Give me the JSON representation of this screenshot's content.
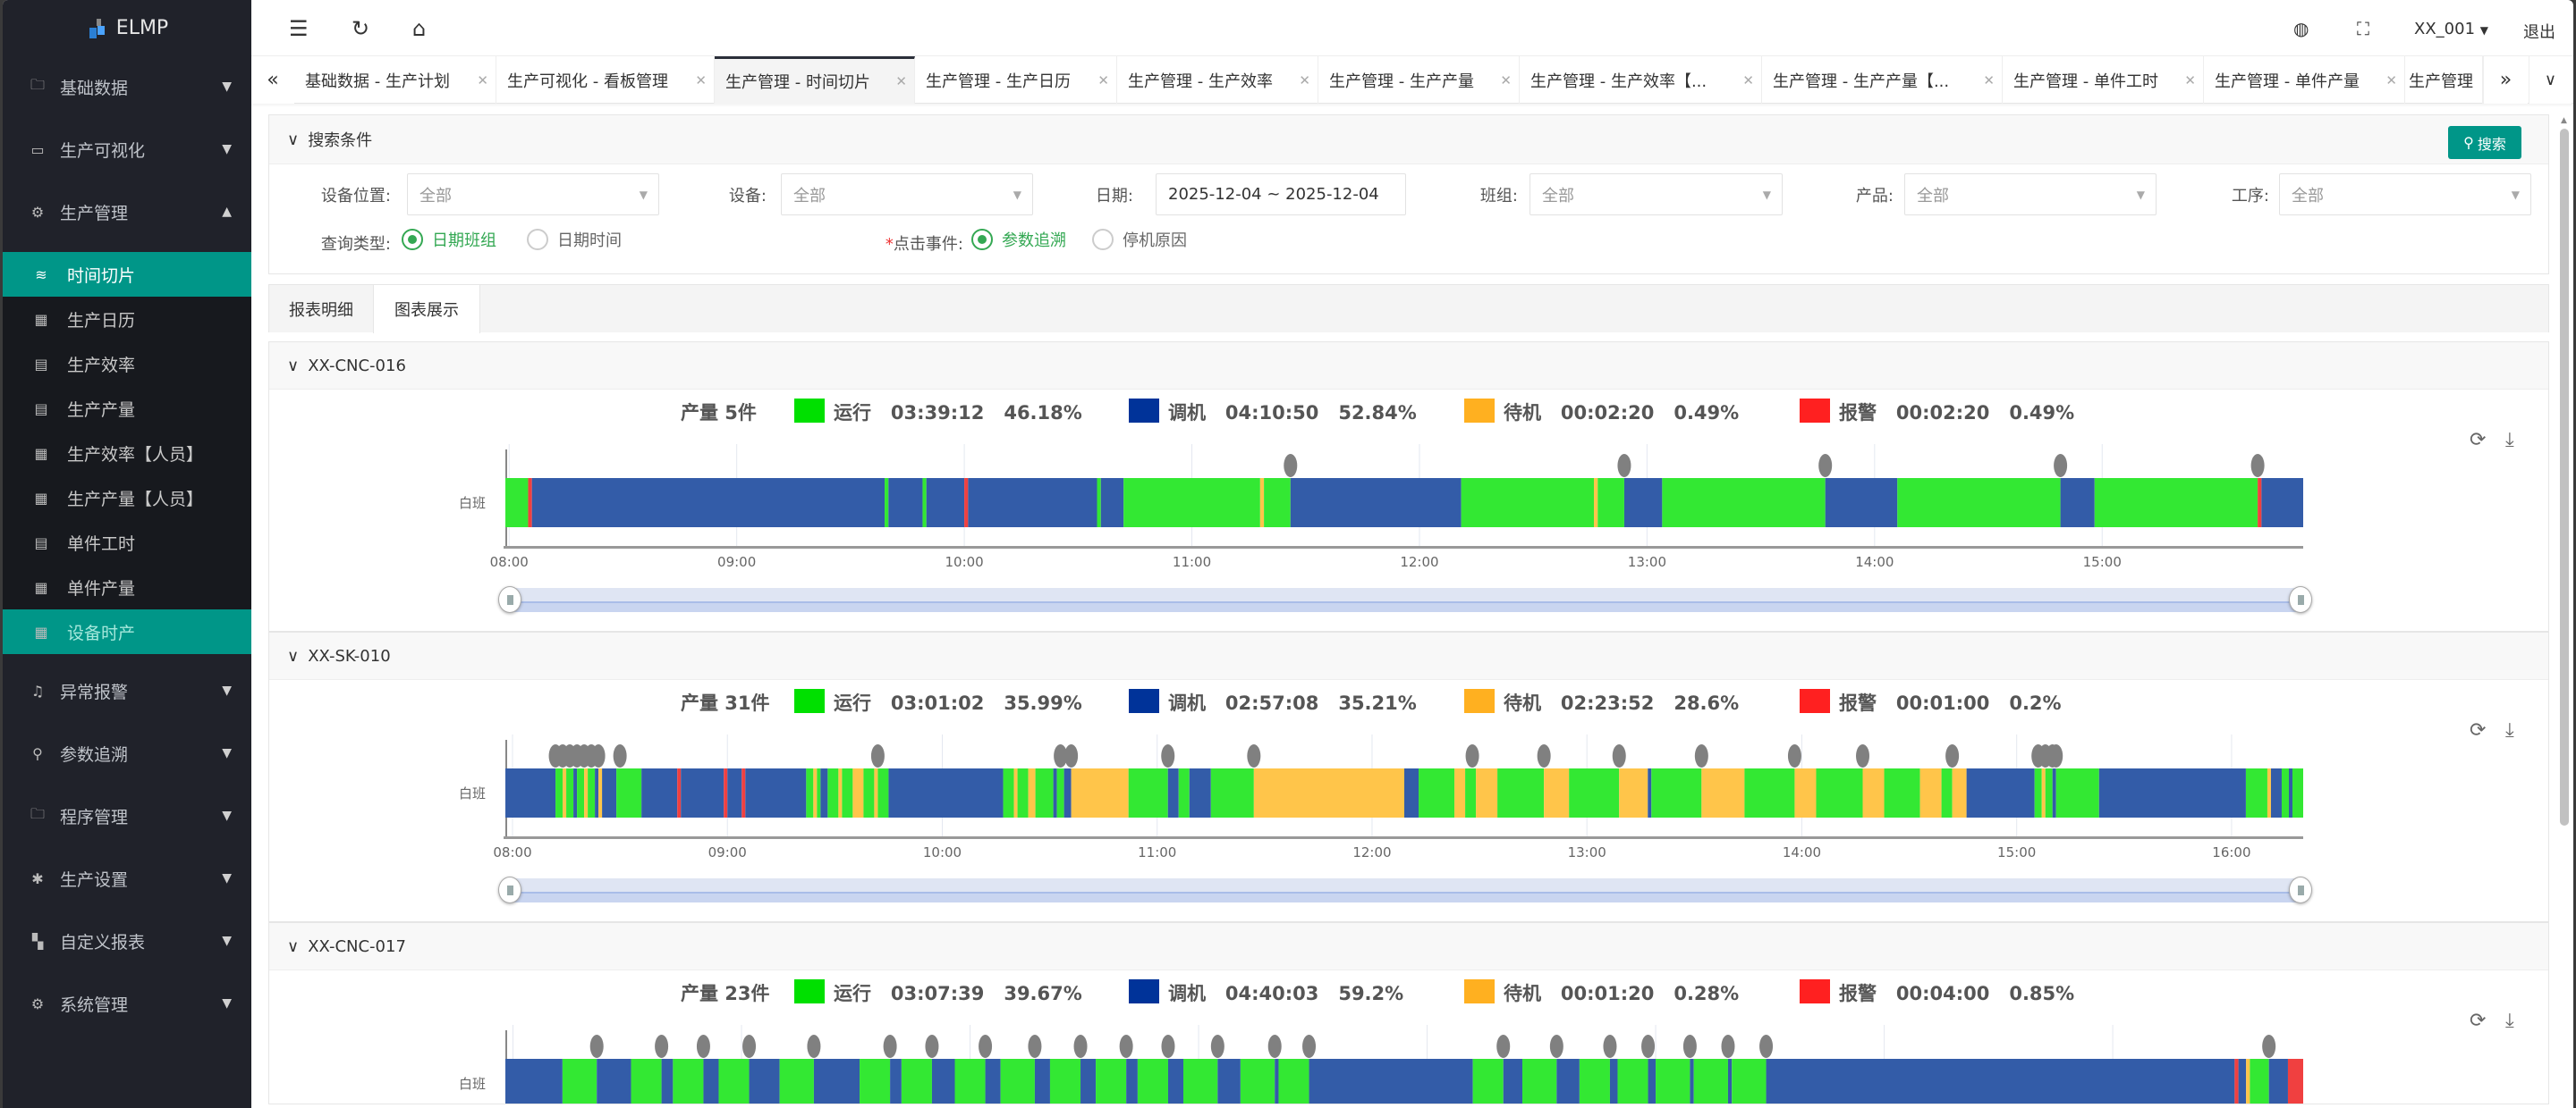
{
  "app": {
    "logo": "ELMP"
  },
  "sidebar": {
    "top": [
      {
        "label": "基础数据",
        "icon": "folder-icon"
      },
      {
        "label": "生产可视化",
        "icon": "monitor-icon"
      },
      {
        "label": "生产管理",
        "icon": "gear-icon"
      }
    ],
    "sub": [
      {
        "label": "时间切片",
        "icon": "layers-icon"
      },
      {
        "label": "生产日历",
        "icon": "table-icon"
      },
      {
        "label": "生产效率",
        "icon": "clipboard-icon"
      },
      {
        "label": "生产产量",
        "icon": "clipboard-icon"
      },
      {
        "label": "生产效率【人员】",
        "icon": "table-icon"
      },
      {
        "label": "生产产量【人员】",
        "icon": "table-icon"
      },
      {
        "label": "单件工时",
        "icon": "clipboard-icon"
      },
      {
        "label": "单件产量",
        "icon": "table-icon"
      },
      {
        "label": "设备时产",
        "icon": "table-icon"
      }
    ],
    "bottom": [
      {
        "label": "异常报警",
        "icon": "bell-icon"
      },
      {
        "label": "参数追溯",
        "icon": "search-icon"
      },
      {
        "label": "程序管理",
        "icon": "folder-icon"
      },
      {
        "label": "生产设置",
        "icon": "cog-icon"
      },
      {
        "label": "自定义报表",
        "icon": "report-icon"
      },
      {
        "label": "系统管理",
        "icon": "settings-icon"
      }
    ]
  },
  "header": {
    "user": "XX_001",
    "logout": "退出"
  },
  "tabs": [
    "基础数据 - 生产计划",
    "生产可视化 - 看板管理",
    "生产管理 - 时间切片",
    "生产管理 - 生产日历",
    "生产管理 - 生产效率",
    "生产管理 - 生产产量",
    "生产管理 - 生产效率【...",
    "生产管理 - 生产产量【...",
    "生产管理 - 单件工时",
    "生产管理 - 单件产量",
    "生产管理"
  ],
  "search": {
    "title": "搜索条件",
    "button": "搜索",
    "fields": [
      {
        "label": "设备位置:",
        "value": "全部"
      },
      {
        "label": "设备:",
        "value": "全部"
      },
      {
        "label": "日期:",
        "value": "2025-12-04 ~ 2025-12-04"
      },
      {
        "label": "班组:",
        "value": "全部"
      },
      {
        "label": "产品:",
        "value": "全部"
      },
      {
        "label": "工序:",
        "value": "全部"
      }
    ],
    "query_type": {
      "label": "查询类型:",
      "options": [
        "日期班组",
        "日期时间"
      ],
      "selected": "日期班组"
    },
    "click_event": {
      "label": "点击事件:",
      "required_mark": "*",
      "options": [
        "参数追溯",
        "停机原因"
      ],
      "selected": "参数追溯"
    }
  },
  "report_tabs": [
    "报表明细",
    "图表展示"
  ],
  "colors": {
    "run": "#33e833",
    "adjust": "#335ca8",
    "idle": "#ffc54a",
    "alarm": "#f04040",
    "legend_run": "#00e000",
    "legend_adjust": "#003399",
    "legend_idle": "#ffb020",
    "legend_alarm": "#ff2020",
    "marker": "#808080",
    "accent": "#009688"
  },
  "chart_data": [
    {
      "type": "timeline",
      "device": "XX-CNC-016",
      "output": "产量 5件",
      "shift": "白班",
      "legend": [
        {
          "state": "run",
          "text": "运行   03:39:12   46.18%"
        },
        {
          "state": "adjust",
          "text": "调机   04:10:50   52.84%"
        },
        {
          "state": "idle",
          "text": "待机   00:02:20   0.49%"
        },
        {
          "state": "alarm",
          "text": "报警   00:02:20   0.49%"
        }
      ],
      "xlim": [
        "07:59",
        "15:53"
      ],
      "ticks": [
        "08:00",
        "09:00",
        "10:00",
        "11:00",
        "12:00",
        "13:00",
        "14:00",
        "15:00"
      ],
      "segments": [
        [
          "07:59",
          "08:05",
          "run"
        ],
        [
          "08:05",
          "08:06",
          "alarm"
        ],
        [
          "08:06",
          "09:39",
          "adjust"
        ],
        [
          "09:39",
          "09:40",
          "run"
        ],
        [
          "09:40",
          "09:49",
          "adjust"
        ],
        [
          "09:49",
          "09:50",
          "run"
        ],
        [
          "09:50",
          "10:00",
          "adjust"
        ],
        [
          "10:00",
          "10:01",
          "alarm"
        ],
        [
          "10:01",
          "10:35",
          "adjust"
        ],
        [
          "10:35",
          "10:36",
          "run"
        ],
        [
          "10:36",
          "10:42",
          "adjust"
        ],
        [
          "10:42",
          "11:18",
          "run"
        ],
        [
          "11:18",
          "11:19",
          "idle"
        ],
        [
          "11:19",
          "11:26",
          "run"
        ],
        [
          "11:26",
          "12:11",
          "adjust"
        ],
        [
          "12:11",
          "12:46",
          "run"
        ],
        [
          "12:46",
          "12:47",
          "idle"
        ],
        [
          "12:47",
          "12:54",
          "run"
        ],
        [
          "12:54",
          "13:04",
          "adjust"
        ],
        [
          "13:04",
          "13:47",
          "run"
        ],
        [
          "13:47",
          "14:06",
          "adjust"
        ],
        [
          "14:06",
          "14:49",
          "run"
        ],
        [
          "14:49",
          "14:58",
          "adjust"
        ],
        [
          "14:58",
          "15:41",
          "run"
        ],
        [
          "15:41",
          "15:42",
          "alarm"
        ],
        [
          "15:42",
          "15:53",
          "adjust"
        ]
      ],
      "markers": [
        "11:26",
        "12:54",
        "13:47",
        "14:49",
        "15:41"
      ]
    },
    {
      "type": "timeline",
      "device": "XX-SK-010",
      "output": "产量 31件",
      "shift": "白班",
      "legend": [
        {
          "state": "run",
          "text": "运行   03:01:02   35.99%"
        },
        {
          "state": "adjust",
          "text": "调机   02:57:08   35.21%"
        },
        {
          "state": "idle",
          "text": "待机   02:23:52   28.6%"
        },
        {
          "state": "alarm",
          "text": "报警   00:01:00   0.2%"
        }
      ],
      "xlim": [
        "07:58",
        "16:20"
      ],
      "ticks": [
        "08:00",
        "09:00",
        "10:00",
        "11:00",
        "12:00",
        "13:00",
        "14:00",
        "15:00",
        "16:00"
      ],
      "segments": [
        [
          "07:58",
          "08:12",
          "adjust"
        ],
        [
          "08:12",
          "08:14",
          "run"
        ],
        [
          "08:14",
          "08:15",
          "idle"
        ],
        [
          "08:15",
          "08:17",
          "run"
        ],
        [
          "08:17",
          "08:18",
          "adjust"
        ],
        [
          "08:18",
          "08:20",
          "run"
        ],
        [
          "08:20",
          "08:21",
          "idle"
        ],
        [
          "08:21",
          "08:23",
          "run"
        ],
        [
          "08:23",
          "08:24",
          "adjust"
        ],
        [
          "08:24",
          "08:25",
          "idle"
        ],
        [
          "08:25",
          "08:29",
          "adjust"
        ],
        [
          "08:29",
          "08:36",
          "run"
        ],
        [
          "08:36",
          "08:46",
          "adjust"
        ],
        [
          "08:46",
          "08:47",
          "alarm"
        ],
        [
          "08:47",
          "08:59",
          "adjust"
        ],
        [
          "08:59",
          "09:00",
          "alarm"
        ],
        [
          "09:00",
          "09:04",
          "adjust"
        ],
        [
          "09:04",
          "09:05",
          "alarm"
        ],
        [
          "09:05",
          "09:22",
          "adjust"
        ],
        [
          "09:22",
          "09:24",
          "run"
        ],
        [
          "09:24",
          "09:25",
          "idle"
        ],
        [
          "09:25",
          "09:26",
          "run"
        ],
        [
          "09:26",
          "09:28",
          "adjust"
        ],
        [
          "09:28",
          "09:31",
          "run"
        ],
        [
          "09:31",
          "09:32",
          "idle"
        ],
        [
          "09:32",
          "09:35",
          "run"
        ],
        [
          "09:35",
          "09:38",
          "idle"
        ],
        [
          "09:38",
          "09:41",
          "run"
        ],
        [
          "09:41",
          "09:42",
          "idle"
        ],
        [
          "09:42",
          "09:45",
          "run"
        ],
        [
          "09:45",
          "10:17",
          "adjust"
        ],
        [
          "10:17",
          "10:20",
          "run"
        ],
        [
          "10:20",
          "10:21",
          "idle"
        ],
        [
          "10:21",
          "10:24",
          "run"
        ],
        [
          "10:24",
          "10:26",
          "idle"
        ],
        [
          "10:26",
          "10:31",
          "run"
        ],
        [
          "10:31",
          "10:32",
          "adjust"
        ],
        [
          "10:32",
          "10:34",
          "run"
        ],
        [
          "10:34",
          "10:36",
          "adjust"
        ],
        [
          "10:36",
          "10:52",
          "idle"
        ],
        [
          "10:52",
          "11:03",
          "run"
        ],
        [
          "11:03",
          "11:06",
          "adjust"
        ],
        [
          "11:06",
          "11:09",
          "run"
        ],
        [
          "11:09",
          "11:15",
          "adjust"
        ],
        [
          "11:15",
          "11:27",
          "run"
        ],
        [
          "11:27",
          "12:09",
          "idle"
        ],
        [
          "12:09",
          "12:13",
          "adjust"
        ],
        [
          "12:13",
          "12:23",
          "run"
        ],
        [
          "12:23",
          "12:26",
          "idle"
        ],
        [
          "12:26",
          "12:29",
          "run"
        ],
        [
          "12:29",
          "12:35",
          "idle"
        ],
        [
          "12:35",
          "12:48",
          "run"
        ],
        [
          "12:48",
          "12:55",
          "idle"
        ],
        [
          "12:55",
          "13:09",
          "run"
        ],
        [
          "13:09",
          "13:17",
          "idle"
        ],
        [
          "13:17",
          "13:18",
          "adjust"
        ],
        [
          "13:18",
          "13:32",
          "run"
        ],
        [
          "13:32",
          "13:44",
          "idle"
        ],
        [
          "13:44",
          "13:58",
          "run"
        ],
        [
          "13:58",
          "14:04",
          "idle"
        ],
        [
          "14:04",
          "14:17",
          "run"
        ],
        [
          "14:17",
          "14:23",
          "idle"
        ],
        [
          "14:23",
          "14:33",
          "run"
        ],
        [
          "14:33",
          "14:39",
          "idle"
        ],
        [
          "14:39",
          "14:42",
          "run"
        ],
        [
          "14:42",
          "14:46",
          "idle"
        ],
        [
          "14:46",
          "15:05",
          "adjust"
        ],
        [
          "15:05",
          "15:07",
          "run"
        ],
        [
          "15:07",
          "15:08",
          "idle"
        ],
        [
          "15:08",
          "15:10",
          "run"
        ],
        [
          "15:10",
          "15:11",
          "adjust"
        ],
        [
          "15:11",
          "15:23",
          "run"
        ],
        [
          "15:23",
          "16:04",
          "adjust"
        ],
        [
          "16:04",
          "16:10",
          "run"
        ],
        [
          "16:10",
          "16:11",
          "idle"
        ],
        [
          "16:11",
          "16:14",
          "adjust"
        ],
        [
          "16:14",
          "16:16",
          "run"
        ],
        [
          "16:16",
          "16:17",
          "adjust"
        ],
        [
          "16:17",
          "16:20",
          "run"
        ]
      ],
      "markers": [
        "08:12",
        "08:14",
        "08:16",
        "08:18",
        "08:20",
        "08:22",
        "08:24",
        "08:30",
        "09:42",
        "10:33",
        "10:36",
        "11:03",
        "11:27",
        "12:28",
        "12:48",
        "13:09",
        "13:32",
        "13:58",
        "14:17",
        "14:42",
        "15:06",
        "15:08",
        "15:10",
        "15:11"
      ]
    },
    {
      "type": "timeline",
      "device": "XX-CNC-017",
      "output": "产量 23件",
      "shift": "白班",
      "legend": [
        {
          "state": "run",
          "text": "运行   03:07:39   39.67%"
        },
        {
          "state": "adjust",
          "text": "调机   04:40:03   59.2%"
        },
        {
          "state": "idle",
          "text": "待机   00:01:20   0.28%"
        },
        {
          "state": "alarm",
          "text": "报警   00:04:00   0.85%"
        }
      ],
      "xlim": [
        "07:58",
        "15:50"
      ],
      "gridlines": [
        8,
        9,
        10,
        11,
        12,
        13,
        14,
        15
      ],
      "segments": [
        [
          "07:58",
          "08:13",
          "adjust"
        ],
        [
          "08:13",
          "08:22",
          "run"
        ],
        [
          "08:22",
          "08:31",
          "adjust"
        ],
        [
          "08:31",
          "08:39",
          "run"
        ],
        [
          "08:39",
          "08:42",
          "adjust"
        ],
        [
          "08:42",
          "08:50",
          "run"
        ],
        [
          "08:50",
          "08:54",
          "adjust"
        ],
        [
          "08:54",
          "09:02",
          "run"
        ],
        [
          "09:02",
          "09:10",
          "adjust"
        ],
        [
          "09:10",
          "09:19",
          "run"
        ],
        [
          "09:19",
          "09:31",
          "adjust"
        ],
        [
          "09:31",
          "09:39",
          "run"
        ],
        [
          "09:39",
          "09:42",
          "adjust"
        ],
        [
          "09:42",
          "09:50",
          "run"
        ],
        [
          "09:50",
          "09:56",
          "adjust"
        ],
        [
          "09:56",
          "10:04",
          "run"
        ],
        [
          "10:04",
          "10:08",
          "adjust"
        ],
        [
          "10:08",
          "10:17",
          "run"
        ],
        [
          "10:17",
          "10:21",
          "adjust"
        ],
        [
          "10:21",
          "10:29",
          "run"
        ],
        [
          "10:29",
          "10:33",
          "adjust"
        ],
        [
          "10:33",
          "10:41",
          "run"
        ],
        [
          "10:41",
          "10:44",
          "adjust"
        ],
        [
          "10:44",
          "10:52",
          "run"
        ],
        [
          "10:52",
          "10:56",
          "adjust"
        ],
        [
          "10:56",
          "11:05",
          "run"
        ],
        [
          "11:05",
          "11:11",
          "adjust"
        ],
        [
          "11:11",
          "11:20",
          "run"
        ],
        [
          "11:20",
          "11:21",
          "adjust"
        ],
        [
          "11:21",
          "11:29",
          "run"
        ],
        [
          "11:29",
          "12:12",
          "adjust"
        ],
        [
          "12:12",
          "12:20",
          "run"
        ],
        [
          "12:20",
          "12:25",
          "adjust"
        ],
        [
          "12:25",
          "12:34",
          "run"
        ],
        [
          "12:34",
          "12:40",
          "adjust"
        ],
        [
          "12:40",
          "12:48",
          "run"
        ],
        [
          "12:48",
          "12:50",
          "adjust"
        ],
        [
          "12:50",
          "12:58",
          "run"
        ],
        [
          "12:58",
          "13:00",
          "adjust"
        ],
        [
          "13:00",
          "13:09",
          "run"
        ],
        [
          "13:09",
          "13:10",
          "adjust"
        ],
        [
          "13:10",
          "13:19",
          "run"
        ],
        [
          "13:19",
          "13:20",
          "adjust"
        ],
        [
          "13:20",
          "13:29",
          "run"
        ],
        [
          "13:29",
          "15:32",
          "adjust"
        ],
        [
          "15:32",
          "15:33",
          "alarm"
        ],
        [
          "15:33",
          "15:35",
          "adjust"
        ],
        [
          "15:35",
          "15:36",
          "idle"
        ],
        [
          "15:36",
          "15:41",
          "run"
        ],
        [
          "15:41",
          "15:46",
          "adjust"
        ],
        [
          "15:46",
          "15:50",
          "alarm"
        ]
      ],
      "markers": [
        "08:22",
        "08:39",
        "08:50",
        "09:02",
        "09:19",
        "09:39",
        "09:50",
        "10:04",
        "10:17",
        "10:29",
        "10:41",
        "10:52",
        "11:05",
        "11:20",
        "11:29",
        "12:20",
        "12:34",
        "12:48",
        "12:58",
        "13:09",
        "13:19",
        "13:29",
        "15:41"
      ]
    }
  ]
}
